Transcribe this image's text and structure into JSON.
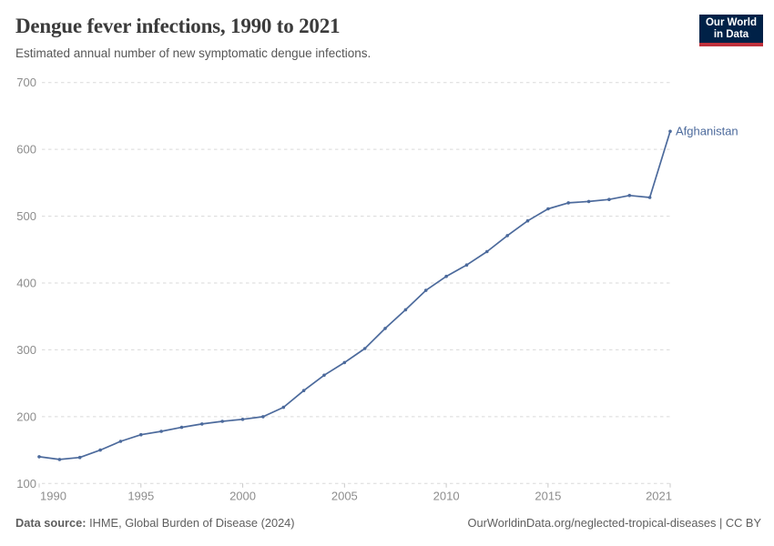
{
  "header": {
    "title": "Dengue fever infections, 1990 to 2021",
    "subtitle": "Estimated annual number of new symptomatic dengue infections.",
    "logo": {
      "line1": "Our World",
      "line2": "in Data"
    }
  },
  "footer": {
    "source_label": "Data source:",
    "source_text": " IHME, Global Burden of Disease (2024)",
    "credit": "OurWorldinData.org/neglected-tropical-diseases | CC BY"
  },
  "colors": {
    "line": "#4c6a9c",
    "title": "#3b3b3b",
    "subtitle": "#565656",
    "tick_label": "#8d8d8d",
    "gridline": "#dadada",
    "logo_navy": "#002147",
    "logo_red": "#c0313c",
    "footer_text": "#5e5e5e"
  },
  "chart_data": {
    "type": "line",
    "title": "Dengue fever infections, 1990 to 2021",
    "subtitle": "Estimated annual number of new symptomatic dengue infections.",
    "xlabel": "",
    "ylabel": "",
    "xlim": [
      1990,
      2021
    ],
    "ylim": [
      100,
      700
    ],
    "yticks": [
      100,
      200,
      300,
      400,
      500,
      600,
      700
    ],
    "xticks": [
      1990,
      1995,
      2000,
      2005,
      2010,
      2015,
      2021
    ],
    "grid": "horizontal-dashed",
    "legend": "end-of-line-label",
    "x": [
      1990,
      1991,
      1992,
      1993,
      1994,
      1995,
      1996,
      1997,
      1998,
      1999,
      2000,
      2001,
      2002,
      2003,
      2004,
      2005,
      2006,
      2007,
      2008,
      2009,
      2010,
      2011,
      2012,
      2013,
      2014,
      2015,
      2016,
      2017,
      2018,
      2019,
      2020,
      2021
    ],
    "series": [
      {
        "name": "Afghanistan",
        "color": "#4c6a9c",
        "values": [
          140,
          136,
          139,
          150,
          163,
          173,
          178,
          184,
          189,
          193,
          196,
          200,
          214,
          239,
          262,
          281,
          302,
          332,
          360,
          389,
          410,
          427,
          447,
          471,
          493,
          511,
          520,
          522,
          525,
          531,
          528,
          627
        ]
      }
    ]
  }
}
